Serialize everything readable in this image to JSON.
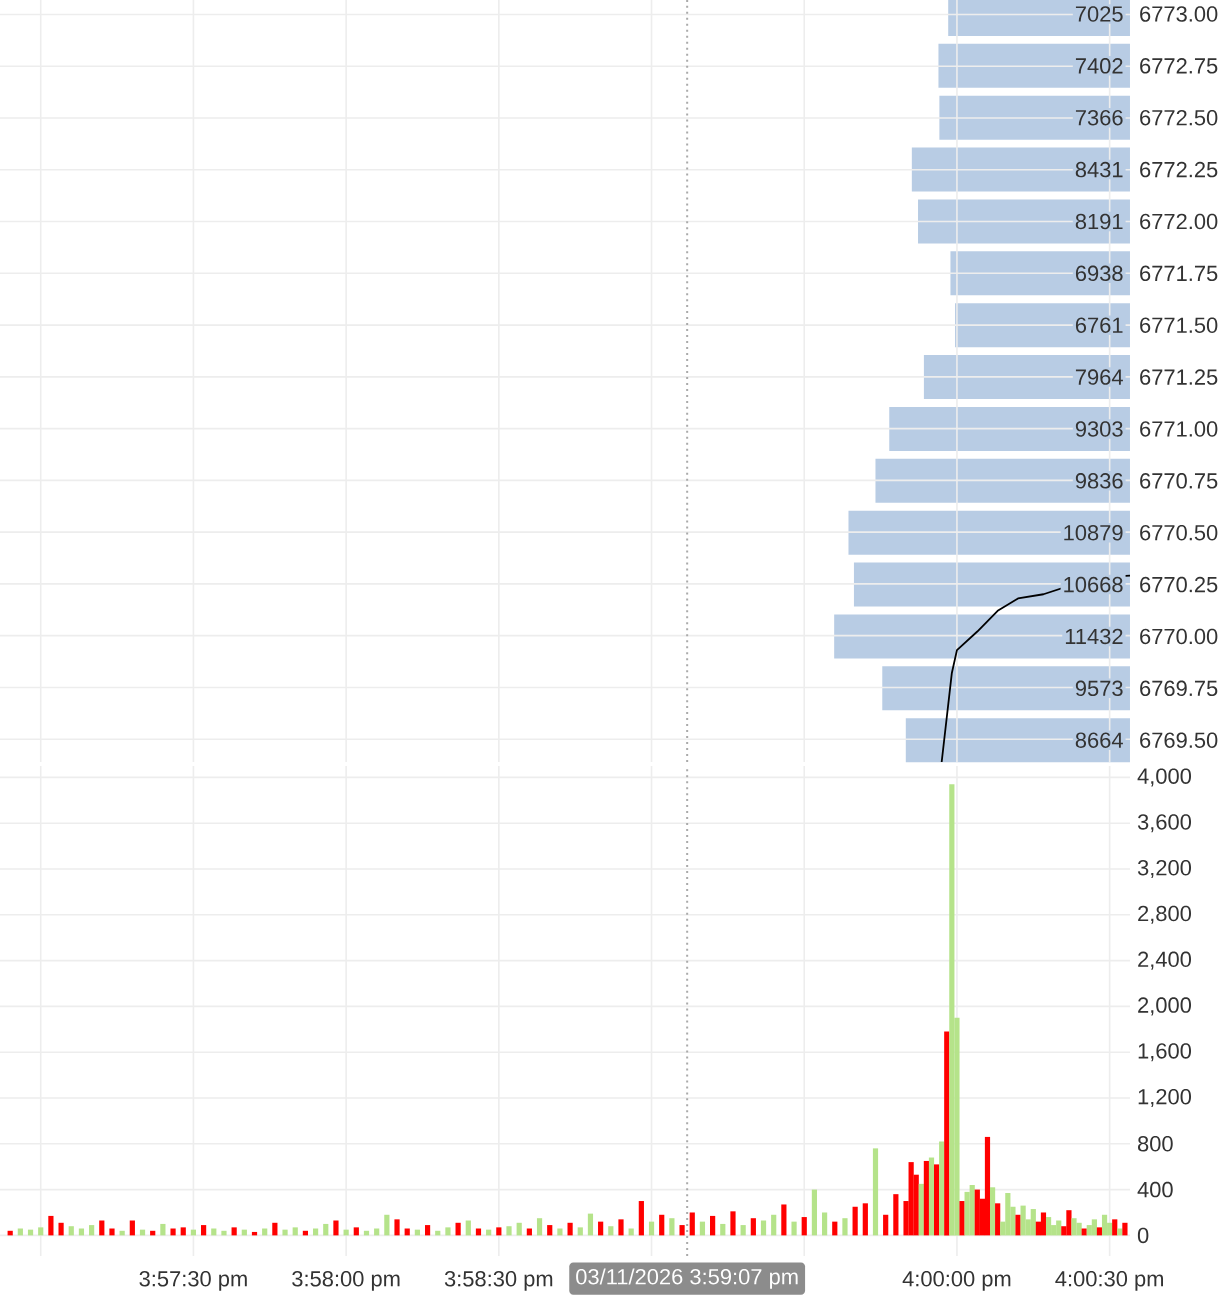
{
  "chart_data": [
    {
      "type": "bar",
      "orientation": "horizontal",
      "categories": [
        "6773.00",
        "6772.75",
        "6772.50",
        "6772.25",
        "6772.00",
        "6771.75",
        "6771.50",
        "6771.25",
        "6771.00",
        "6770.75",
        "6770.50",
        "6770.25",
        "6770.00",
        "6769.75",
        "6769.50"
      ],
      "values": [
        7025,
        7402,
        7366,
        8431,
        8191,
        6938,
        6761,
        7964,
        9303,
        9836,
        10879,
        10668,
        11432,
        9573,
        8664
      ],
      "color": "#b8cce4",
      "data_labels": true
    },
    {
      "type": "line",
      "x": [
        "2026-03-11T15:59:57",
        "2026-03-11T15:59:59",
        "2026-03-11T16:00:00",
        "2026-03-11T16:00:04",
        "2026-03-11T16:00:08",
        "2026-03-11T16:00:12",
        "2026-03-11T16:00:17",
        "2026-03-11T16:00:27",
        "2026-03-11T16:00:34"
      ],
      "values": [
        6769.39,
        6769.82,
        6769.93,
        6770.02,
        6770.12,
        6770.18,
        6770.2,
        6770.28,
        6770.29
      ],
      "color": "#000000",
      "xlim": [
        "2026-03-11T15:56:52",
        "2026-03-11T16:00:34"
      ],
      "ylim": [
        6769.39,
        6773.07
      ],
      "xticks": [
        "2026-03-11T15:57:00",
        "2026-03-11T15:57:30",
        "2026-03-11T15:58:00",
        "2026-03-11T15:58:30",
        "2026-03-11T15:59:00",
        "2026-03-11T15:59:30",
        "2026-03-11T16:00:00",
        "2026-03-11T16:00:30"
      ],
      "yticks": [
        6769.5,
        6769.75,
        6770,
        6770.25,
        6770.5,
        6770.75,
        6771,
        6771.25,
        6771.5,
        6771.75,
        6772,
        6772.25,
        6772.5,
        6772.75,
        6773
      ],
      "tick_labels": false,
      "grid": true,
      "ref_lines": [
        {
          "axis": "x",
          "value": "2026-03-11T15:59:07",
          "color": "#aaaaaa",
          "line_style": "dotted"
        }
      ]
    },
    {
      "type": "bar",
      "x": [
        "2026-03-11T15:56:54",
        "2026-03-11T15:56:56",
        "2026-03-11T15:56:58",
        "2026-03-11T15:57:00",
        "2026-03-11T15:57:02",
        "2026-03-11T15:57:04",
        "2026-03-11T15:57:06",
        "2026-03-11T15:57:08",
        "2026-03-11T15:57:10",
        "2026-03-11T15:57:12",
        "2026-03-11T15:57:14",
        "2026-03-11T15:57:16",
        "2026-03-11T15:57:18",
        "2026-03-11T15:57:20",
        "2026-03-11T15:57:22",
        "2026-03-11T15:57:24",
        "2026-03-11T15:57:26",
        "2026-03-11T15:57:28",
        "2026-03-11T15:57:30",
        "2026-03-11T15:57:32",
        "2026-03-11T15:57:34",
        "2026-03-11T15:57:36",
        "2026-03-11T15:57:38",
        "2026-03-11T15:57:40",
        "2026-03-11T15:57:42",
        "2026-03-11T15:57:44",
        "2026-03-11T15:57:46",
        "2026-03-11T15:57:48",
        "2026-03-11T15:57:50",
        "2026-03-11T15:57:52",
        "2026-03-11T15:57:54",
        "2026-03-11T15:57:56",
        "2026-03-11T15:57:58",
        "2026-03-11T15:58:00",
        "2026-03-11T15:58:02",
        "2026-03-11T15:58:04",
        "2026-03-11T15:58:06",
        "2026-03-11T15:58:08",
        "2026-03-11T15:58:10",
        "2026-03-11T15:58:12",
        "2026-03-11T15:58:14",
        "2026-03-11T15:58:16",
        "2026-03-11T15:58:18",
        "2026-03-11T15:58:20",
        "2026-03-11T15:58:22",
        "2026-03-11T15:58:24",
        "2026-03-11T15:58:26",
        "2026-03-11T15:58:28",
        "2026-03-11T15:58:30",
        "2026-03-11T15:58:32",
        "2026-03-11T15:58:34",
        "2026-03-11T15:58:36",
        "2026-03-11T15:58:38",
        "2026-03-11T15:58:40",
        "2026-03-11T15:58:42",
        "2026-03-11T15:58:44",
        "2026-03-11T15:58:46",
        "2026-03-11T15:58:48",
        "2026-03-11T15:58:50",
        "2026-03-11T15:58:52",
        "2026-03-11T15:58:54",
        "2026-03-11T15:58:56",
        "2026-03-11T15:58:58",
        "2026-03-11T15:59:00",
        "2026-03-11T15:59:02",
        "2026-03-11T15:59:04",
        "2026-03-11T15:59:06",
        "2026-03-11T15:59:08",
        "2026-03-11T15:59:10",
        "2026-03-11T15:59:12",
        "2026-03-11T15:59:14",
        "2026-03-11T15:59:16",
        "2026-03-11T15:59:18",
        "2026-03-11T15:59:20",
        "2026-03-11T15:59:22",
        "2026-03-11T15:59:24",
        "2026-03-11T15:59:26",
        "2026-03-11T15:59:28",
        "2026-03-11T15:59:30",
        "2026-03-11T15:59:32",
        "2026-03-11T15:59:34",
        "2026-03-11T15:59:36",
        "2026-03-11T15:59:38",
        "2026-03-11T15:59:40",
        "2026-03-11T15:59:42",
        "2026-03-11T15:59:44",
        "2026-03-11T15:59:46",
        "2026-03-11T15:59:48",
        "2026-03-11T15:59:50",
        "2026-03-11T15:59:51",
        "2026-03-11T15:59:52",
        "2026-03-11T15:59:53",
        "2026-03-11T15:59:54",
        "2026-03-11T15:59:55",
        "2026-03-11T15:59:56",
        "2026-03-11T15:59:57",
        "2026-03-11T15:59:58",
        "2026-03-11T15:59:59",
        "2026-03-11T16:00:00",
        "2026-03-11T16:00:01",
        "2026-03-11T16:00:02",
        "2026-03-11T16:00:03",
        "2026-03-11T16:00:04",
        "2026-03-11T16:00:05",
        "2026-03-11T16:00:06",
        "2026-03-11T16:00:07",
        "2026-03-11T16:00:08",
        "2026-03-11T16:00:09",
        "2026-03-11T16:00:10",
        "2026-03-11T16:00:11",
        "2026-03-11T16:00:12",
        "2026-03-11T16:00:13",
        "2026-03-11T16:00:14",
        "2026-03-11T16:00:15",
        "2026-03-11T16:00:16",
        "2026-03-11T16:00:17",
        "2026-03-11T16:00:18",
        "2026-03-11T16:00:19",
        "2026-03-11T16:00:20",
        "2026-03-11T16:00:21",
        "2026-03-11T16:00:22",
        "2026-03-11T16:00:23",
        "2026-03-11T16:00:24",
        "2026-03-11T16:00:25",
        "2026-03-11T16:00:26",
        "2026-03-11T16:00:27",
        "2026-03-11T16:00:28",
        "2026-03-11T16:00:29",
        "2026-03-11T16:00:30",
        "2026-03-11T16:00:31",
        "2026-03-11T16:00:32",
        "2026-03-11T16:00:33"
      ],
      "values": [
        40,
        60,
        50,
        70,
        170,
        110,
        80,
        60,
        90,
        130,
        60,
        40,
        130,
        50,
        40,
        100,
        60,
        70,
        50,
        90,
        60,
        40,
        70,
        50,
        30,
        60,
        110,
        50,
        70,
        40,
        60,
        100,
        130,
        50,
        70,
        40,
        60,
        180,
        140,
        60,
        50,
        90,
        40,
        70,
        110,
        130,
        60,
        50,
        70,
        80,
        110,
        60,
        150,
        90,
        60,
        110,
        70,
        190,
        120,
        80,
        140,
        60,
        300,
        120,
        180,
        150,
        90,
        200,
        120,
        170,
        100,
        210,
        90,
        150,
        130,
        180,
        270,
        120,
        160,
        400,
        200,
        120,
        150,
        250,
        280,
        760,
        180,
        360,
        300,
        640,
        530,
        450,
        650,
        680,
        620,
        820,
        1780,
        3940,
        1900,
        300,
        380,
        440,
        400,
        320,
        860,
        420,
        280,
        120,
        370,
        250,
        180,
        260,
        140,
        230,
        120,
        200,
        160,
        90,
        130,
        80,
        220,
        150,
        110,
        60,
        90,
        140,
        70,
        180,
        110,
        140,
        60,
        110
      ],
      "colors": [
        "#ff0000",
        "#b5e38a",
        "#b5e38a",
        "#b5e38a",
        "#ff0000",
        "#ff0000",
        "#b5e38a",
        "#b5e38a",
        "#b5e38a",
        "#ff0000",
        "#ff0000",
        "#b5e38a",
        "#ff0000",
        "#b5e38a",
        "#ff0000",
        "#b5e38a",
        "#ff0000",
        "#ff0000",
        "#b5e38a",
        "#ff0000",
        "#b5e38a",
        "#b5e38a",
        "#ff0000",
        "#b5e38a",
        "#ff0000",
        "#b5e38a",
        "#ff0000",
        "#b5e38a",
        "#b5e38a",
        "#ff0000",
        "#b5e38a",
        "#b5e38a",
        "#ff0000",
        "#b5e38a",
        "#ff0000",
        "#b5e38a",
        "#b5e38a",
        "#b5e38a",
        "#ff0000",
        "#ff0000",
        "#b5e38a",
        "#ff0000",
        "#b5e38a",
        "#b5e38a",
        "#ff0000",
        "#b5e38a",
        "#ff0000",
        "#b5e38a",
        "#ff0000",
        "#b5e38a",
        "#b5e38a",
        "#ff0000",
        "#b5e38a",
        "#ff0000",
        "#b5e38a",
        "#ff0000",
        "#b5e38a",
        "#b5e38a",
        "#ff0000",
        "#b5e38a",
        "#ff0000",
        "#b5e38a",
        "#ff0000",
        "#b5e38a",
        "#ff0000",
        "#b5e38a",
        "#ff0000",
        "#ff0000",
        "#b5e38a",
        "#ff0000",
        "#b5e38a",
        "#ff0000",
        "#b5e38a",
        "#ff0000",
        "#b5e38a",
        "#b5e38a",
        "#ff0000",
        "#b5e38a",
        "#ff0000",
        "#b5e38a",
        "#b5e38a",
        "#ff0000",
        "#b5e38a",
        "#ff0000",
        "#ff0000",
        "#b5e38a",
        "#ff0000",
        "#ff0000",
        "#ff0000",
        "#ff0000",
        "#ff0000",
        "#b5e38a",
        "#ff0000",
        "#b5e38a",
        "#ff0000",
        "#b5e38a",
        "#ff0000",
        "#b5e38a",
        "#b5e38a",
        "#ff0000",
        "#b5e38a",
        "#b5e38a",
        "#ff0000",
        "#ff0000",
        "#ff0000",
        "#b5e38a",
        "#ff0000",
        "#b5e38a",
        "#b5e38a",
        "#b5e38a",
        "#ff0000",
        "#b5e38a",
        "#b5e38a",
        "#b5e38a",
        "#ff0000",
        "#ff0000",
        "#b5e38a",
        "#b5e38a",
        "#b5e38a",
        "#ff0000",
        "#ff0000",
        "#b5e38a",
        "#b5e38a",
        "#ff0000",
        "#b5e38a",
        "#b5e38a",
        "#ff0000",
        "#b5e38a",
        "#b5e38a",
        "#ff0000",
        "#b5e38a",
        "#ff0000"
      ],
      "xlim": [
        "2026-03-11T15:56:52",
        "2026-03-11T16:00:34"
      ],
      "ylim": [
        -180,
        4100
      ],
      "xticks": [
        {
          "value": "2026-03-11T15:57:00",
          "label": null
        },
        {
          "value": "2026-03-11T15:57:30",
          "label": "3:57:30 pm"
        },
        {
          "value": "2026-03-11T15:58:00",
          "label": "3:58:00 pm"
        },
        {
          "value": "2026-03-11T15:58:30",
          "label": "3:58:30 pm"
        },
        {
          "value": "2026-03-11T15:59:00",
          "label": null
        },
        {
          "value": "2026-03-11T15:59:30",
          "label": null
        },
        {
          "value": "2026-03-11T16:00:00",
          "label": "4:00:00 pm"
        },
        {
          "value": "2026-03-11T16:00:30",
          "label": "4:00:30 pm"
        }
      ],
      "yticks": [
        0,
        400,
        800,
        {
          "value": 1200,
          "label": "1,200"
        },
        {
          "value": 1600,
          "label": "1,600"
        },
        {
          "value": 2000,
          "label": "2,000"
        },
        {
          "value": 2400,
          "label": "2,400"
        },
        {
          "value": 2800,
          "label": "2,800"
        },
        {
          "value": 3200,
          "label": "3,200"
        },
        {
          "value": 3600,
          "label": "3,600"
        },
        {
          "value": 4000,
          "label": "4,000"
        }
      ],
      "grid": true,
      "ref_lines": [
        {
          "axis": "x",
          "value": "2026-03-11T15:59:07",
          "label": "03/11/2026 3:59:07 pm",
          "color": "#aaaaaa",
          "line_style": "dotted"
        }
      ]
    }
  ]
}
